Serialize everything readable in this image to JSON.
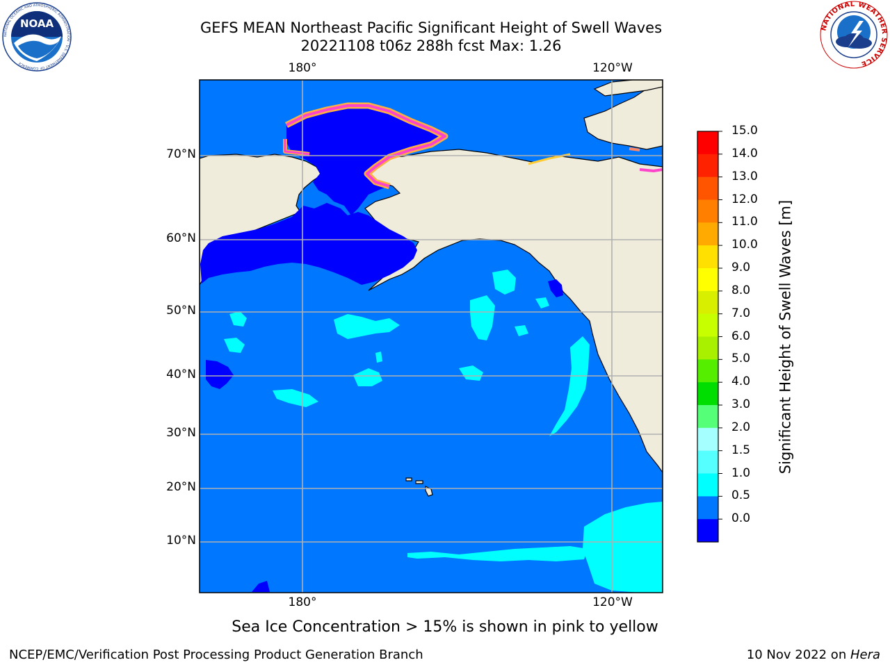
{
  "title": {
    "line1": "GEFS MEAN Northeast Pacific Significant Height of Swell Waves",
    "line2": "20221108 t06z 288h fcst   Max: 1.26"
  },
  "map": {
    "lon_labels_top": [
      "180°",
      "120°W"
    ],
    "lon_labels_bottom": [
      "180°",
      "120°W"
    ],
    "lat_labels": [
      "70°N",
      "60°N",
      "50°N",
      "40°N",
      "30°N",
      "20°N",
      "10°N"
    ],
    "colors": {
      "land": "#efecdc",
      "swell_0_0_5": "#0000ff",
      "swell_0_5_1_0": "#0077ff",
      "swell_1_0_1_5": "#00ffff",
      "grid": "#b0b0b0",
      "coast": "#000000"
    }
  },
  "colorbar": {
    "label": "Significant Height of Swell Waves [m]",
    "ticks": [
      "15.0",
      "14.0",
      "13.0",
      "12.0",
      "11.0",
      "10.0",
      "9.0",
      "8.0",
      "7.0",
      "6.0",
      "5.0",
      "4.0",
      "3.0",
      "2.0",
      "1.5",
      "1.0",
      "0.5",
      "0.0"
    ],
    "colors_top_to_bottom": [
      "#ff0000",
      "#ff2200",
      "#ff5500",
      "#ff8000",
      "#ffaa00",
      "#ffe000",
      "#ffff00",
      "#d8f000",
      "#c8ff00",
      "#a8f000",
      "#55ee00",
      "#00dd00",
      "#55ff77",
      "#a6ffff",
      "#55ffff",
      "#00ffff",
      "#0077ff",
      "#0000ff"
    ]
  },
  "notes": {
    "sea_ice": "Sea Ice Concentration > 15% is shown in pink to yellow"
  },
  "logos": {
    "noaa_text": "NOAA",
    "noaa_ring_text": "NATIONAL OCEANIC AND ATMOSPHERIC ADMINISTRATION · U.S. DEPARTMENT OF COMMERCE",
    "nws_ring_text": "NATIONAL WEATHER SERVICE"
  },
  "footer": {
    "left": "NCEP/EMC/Verification Post Processing Product Generation Branch",
    "right_prefix": "10 Nov 2022 on ",
    "right_host": "Hera"
  }
}
